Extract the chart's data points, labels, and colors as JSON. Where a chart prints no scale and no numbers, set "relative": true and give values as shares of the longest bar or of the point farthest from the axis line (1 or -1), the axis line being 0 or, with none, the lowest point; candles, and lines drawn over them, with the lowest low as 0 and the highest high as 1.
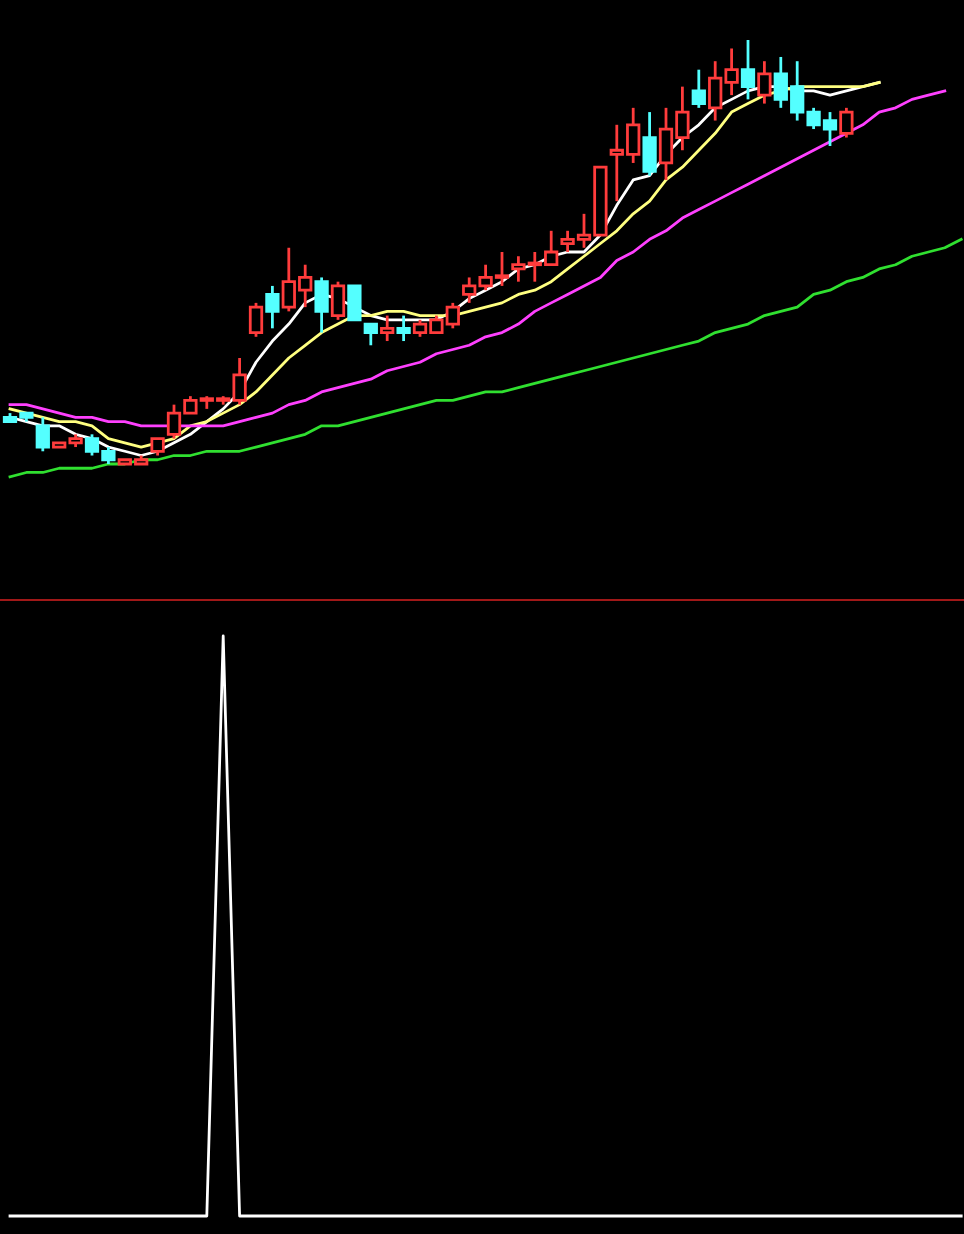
{
  "chart_data": [
    {
      "type": "candlestick",
      "relative": true,
      "categories": [
        null,
        null,
        null,
        null,
        null,
        null,
        null,
        null,
        null,
        null,
        null,
        null,
        null,
        null,
        null,
        null,
        null,
        null,
        null,
        null,
        null,
        null,
        null,
        null,
        null,
        null,
        null,
        null,
        null,
        null,
        null,
        null,
        null,
        null,
        null,
        null,
        null,
        null,
        null,
        null,
        null,
        null,
        null,
        null,
        null,
        null,
        null,
        null,
        null,
        null,
        null,
        null,
        null,
        null,
        null,
        null,
        null,
        null,
        null
      ],
      "ohlc": [
        [
          0.11,
          0.12,
          0.1,
          0.1
        ],
        [
          0.12,
          0.12,
          0.1,
          0.11
        ],
        [
          0.09,
          0.11,
          0.03,
          0.04
        ],
        [
          0.04,
          0.05,
          0.04,
          0.05
        ],
        [
          0.05,
          0.07,
          0.04,
          0.06
        ],
        [
          0.06,
          0.07,
          0.02,
          0.03
        ],
        [
          0.03,
          0.04,
          0.0,
          0.01
        ],
        [
          0.0,
          0.01,
          0.0,
          0.01
        ],
        [
          0.0,
          0.02,
          0.0,
          0.01
        ],
        [
          0.03,
          0.06,
          0.02,
          0.06
        ],
        [
          0.07,
          0.14,
          0.06,
          0.12
        ],
        [
          0.12,
          0.16,
          0.12,
          0.15
        ],
        [
          0.15,
          0.16,
          0.13,
          0.15
        ],
        [
          0.15,
          0.16,
          0.14,
          0.15
        ],
        [
          0.15,
          0.25,
          0.14,
          0.21
        ],
        [
          0.31,
          0.38,
          0.3,
          0.37
        ],
        [
          0.4,
          0.42,
          0.32,
          0.36
        ],
        [
          0.37,
          0.51,
          0.36,
          0.43
        ],
        [
          0.41,
          0.47,
          0.37,
          0.44
        ],
        [
          0.43,
          0.44,
          0.31,
          0.36
        ],
        [
          0.35,
          0.43,
          0.34,
          0.42
        ],
        [
          0.42,
          0.42,
          0.34,
          0.34
        ],
        [
          0.33,
          0.33,
          0.28,
          0.31
        ],
        [
          0.31,
          0.35,
          0.29,
          0.32
        ],
        [
          0.32,
          0.35,
          0.29,
          0.31
        ],
        [
          0.31,
          0.34,
          0.3,
          0.33
        ],
        [
          0.31,
          0.35,
          0.31,
          0.34
        ],
        [
          0.33,
          0.38,
          0.32,
          0.37
        ],
        [
          0.4,
          0.44,
          0.38,
          0.42
        ],
        [
          0.42,
          0.47,
          0.41,
          0.44
        ],
        [
          0.44,
          0.5,
          0.42,
          0.44
        ],
        [
          0.46,
          0.49,
          0.43,
          0.47
        ],
        [
          0.47,
          0.5,
          0.43,
          0.47
        ],
        [
          0.47,
          0.55,
          0.47,
          0.5
        ],
        [
          0.52,
          0.55,
          0.5,
          0.53
        ],
        [
          0.53,
          0.59,
          0.51,
          0.54
        ],
        [
          0.54,
          0.7,
          0.54,
          0.7
        ],
        [
          0.73,
          0.8,
          0.62,
          0.74
        ],
        [
          0.73,
          0.84,
          0.71,
          0.8
        ],
        [
          0.77,
          0.83,
          0.68,
          0.69
        ],
        [
          0.71,
          0.84,
          0.67,
          0.79
        ],
        [
          0.77,
          0.89,
          0.74,
          0.83
        ],
        [
          0.88,
          0.93,
          0.84,
          0.85
        ],
        [
          0.84,
          0.95,
          0.81,
          0.91
        ],
        [
          0.9,
          0.98,
          0.87,
          0.93
        ],
        [
          0.93,
          1.0,
          0.86,
          0.89
        ],
        [
          0.87,
          0.95,
          0.85,
          0.92
        ],
        [
          0.92,
          0.96,
          0.84,
          0.86
        ],
        [
          0.89,
          0.95,
          0.81,
          0.83
        ],
        [
          0.83,
          0.84,
          0.79,
          0.8
        ],
        [
          0.81,
          0.83,
          0.75,
          0.79
        ],
        [
          0.78,
          0.84,
          0.77,
          0.83
        ],
        null,
        null,
        null,
        null,
        null,
        null,
        null
      ],
      "series": [
        {
          "type": "line",
          "color": "#ffffff",
          "values": [
            0.11,
            0.1,
            0.09,
            0.09,
            0.07,
            0.06,
            0.04,
            0.03,
            0.02,
            0.03,
            0.05,
            0.07,
            0.1,
            0.13,
            0.17,
            0.24,
            0.29,
            0.33,
            0.38,
            0.4,
            0.39,
            0.37,
            0.35,
            0.34,
            0.34,
            0.34,
            0.34,
            0.36,
            0.39,
            0.41,
            0.43,
            0.46,
            0.47,
            0.49,
            0.5,
            0.5,
            0.54,
            0.61,
            0.67,
            0.68,
            0.73,
            0.77,
            0.8,
            0.84,
            0.86,
            0.88,
            0.89,
            0.89,
            0.88,
            0.88,
            0.87,
            0.88,
            0.89,
            0.9,
            null,
            null,
            null,
            null,
            null
          ]
        },
        {
          "type": "line",
          "color": "#ffff80",
          "values": [
            0.13,
            0.12,
            0.11,
            0.1,
            0.1,
            0.09,
            0.06,
            0.05,
            0.04,
            0.05,
            0.06,
            0.09,
            0.1,
            0.12,
            0.14,
            0.17,
            0.21,
            0.25,
            0.28,
            0.31,
            0.33,
            0.35,
            0.35,
            0.36,
            0.36,
            0.35,
            0.35,
            0.35,
            0.36,
            0.37,
            0.38,
            0.4,
            0.41,
            0.43,
            0.46,
            0.49,
            0.52,
            0.55,
            0.59,
            0.62,
            0.67,
            0.7,
            0.74,
            0.78,
            0.83,
            0.85,
            0.87,
            0.88,
            0.89,
            0.89,
            0.89,
            0.89,
            0.89,
            0.9,
            null,
            null,
            null,
            null,
            null
          ]
        },
        {
          "type": "line",
          "color": "#ff40ff",
          "values": [
            0.14,
            0.14,
            0.13,
            0.12,
            0.11,
            0.11,
            0.1,
            0.1,
            0.09,
            0.09,
            0.09,
            0.09,
            0.09,
            0.09,
            0.1,
            0.11,
            0.12,
            0.14,
            0.15,
            0.17,
            0.18,
            0.19,
            0.2,
            0.22,
            0.23,
            0.24,
            0.26,
            0.27,
            0.28,
            0.3,
            0.31,
            0.33,
            0.36,
            0.38,
            0.4,
            0.42,
            0.44,
            0.48,
            0.5,
            0.53,
            0.55,
            0.58,
            0.6,
            0.62,
            0.64,
            0.66,
            0.68,
            0.7,
            0.72,
            0.74,
            0.76,
            0.78,
            0.8,
            0.83,
            0.84,
            0.86,
            0.87,
            0.88,
            null
          ]
        },
        {
          "type": "line",
          "color": "#30e030",
          "values": [
            -0.03,
            -0.02,
            -0.02,
            -0.01,
            -0.01,
            -0.01,
            0.0,
            0.0,
            0.01,
            0.01,
            0.02,
            0.02,
            0.03,
            0.03,
            0.03,
            0.04,
            0.05,
            0.06,
            0.07,
            0.09,
            0.09,
            0.1,
            0.11,
            0.12,
            0.13,
            0.14,
            0.15,
            0.15,
            0.16,
            0.17,
            0.17,
            0.18,
            0.19,
            0.2,
            0.21,
            0.22,
            0.23,
            0.24,
            0.25,
            0.26,
            0.27,
            0.28,
            0.29,
            0.31,
            0.32,
            0.33,
            0.35,
            0.36,
            0.37,
            0.4,
            0.41,
            0.43,
            0.44,
            0.46,
            0.47,
            0.49,
            0.5,
            0.51,
            0.53
          ]
        }
      ]
    },
    {
      "type": "line",
      "relative": true,
      "categories": [
        null,
        null,
        null,
        null,
        null,
        null,
        null,
        null,
        null,
        null,
        null,
        null,
        null,
        null,
        null,
        null,
        null,
        null,
        null,
        null,
        null,
        null,
        null,
        null,
        null,
        null,
        null,
        null,
        null,
        null,
        null,
        null,
        null,
        null,
        null,
        null,
        null,
        null,
        null,
        null,
        null,
        null,
        null,
        null,
        null,
        null,
        null,
        null,
        null,
        null,
        null,
        null,
        null,
        null,
        null,
        null,
        null,
        null,
        null
      ],
      "series": [
        {
          "color": "#ffffff",
          "values": [
            0,
            0,
            0,
            0,
            0,
            0,
            0,
            0,
            0,
            0,
            0,
            0,
            0,
            1,
            0,
            0,
            0,
            0,
            0,
            0,
            0,
            0,
            0,
            0,
            0,
            0,
            0,
            0,
            0,
            0,
            0,
            0,
            0,
            0,
            0,
            0,
            0,
            0,
            0,
            0,
            0,
            0,
            0,
            0,
            0,
            0,
            0,
            0,
            0,
            0,
            0,
            0,
            0,
            0,
            0,
            0,
            0,
            0,
            0
          ]
        }
      ]
    }
  ]
}
